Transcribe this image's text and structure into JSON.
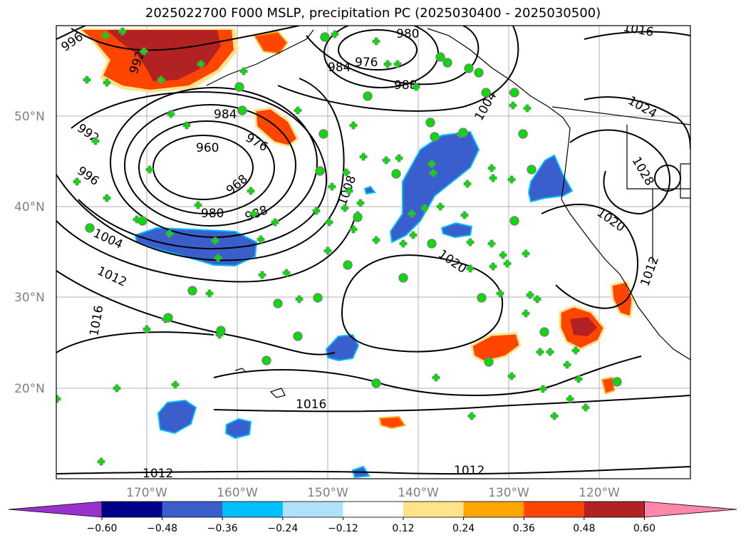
{
  "title": "2025022700 F000 MSLP, precipitation PC (2025030400 - 2025030500)",
  "map": {
    "lat_labels": [
      "50°N",
      "40°N",
      "30°N",
      "20°N"
    ],
    "lon_labels": [
      "170°W",
      "160°W",
      "150°W",
      "140°W",
      "130°W",
      "120°W"
    ],
    "isobar_labels": [
      "996",
      "992",
      "984",
      "976",
      "980",
      "988",
      "1004",
      "1016",
      "1024",
      "1028",
      "1020",
      "1012",
      "960",
      "968",
      "1008",
      "1012",
      "1016",
      "1012",
      "1012"
    ],
    "colors": {
      "dry_deep": "#1f1f8f",
      "dry_mid": "#3a5fcd",
      "dry_light": "#00bfff",
      "wet_light": "#ffe38a",
      "wet_mid": "#ff4500",
      "wet_deep": "#b22222",
      "station_marker": "#00e000",
      "station_outline": "#808080"
    }
  },
  "colorbar": {
    "ticks": [
      "−0.60",
      "−0.48",
      "−0.36",
      "−0.24",
      "−0.12",
      "0.12",
      "0.24",
      "0.36",
      "0.48",
      "0.60"
    ],
    "colors": [
      "#9932cc",
      "#00008b",
      "#3a5fcd",
      "#00bfff",
      "#afe1fa",
      "#ffffff",
      "#ffe38a",
      "#ffa500",
      "#ff4500",
      "#b22222",
      "#ff88aa"
    ]
  }
}
